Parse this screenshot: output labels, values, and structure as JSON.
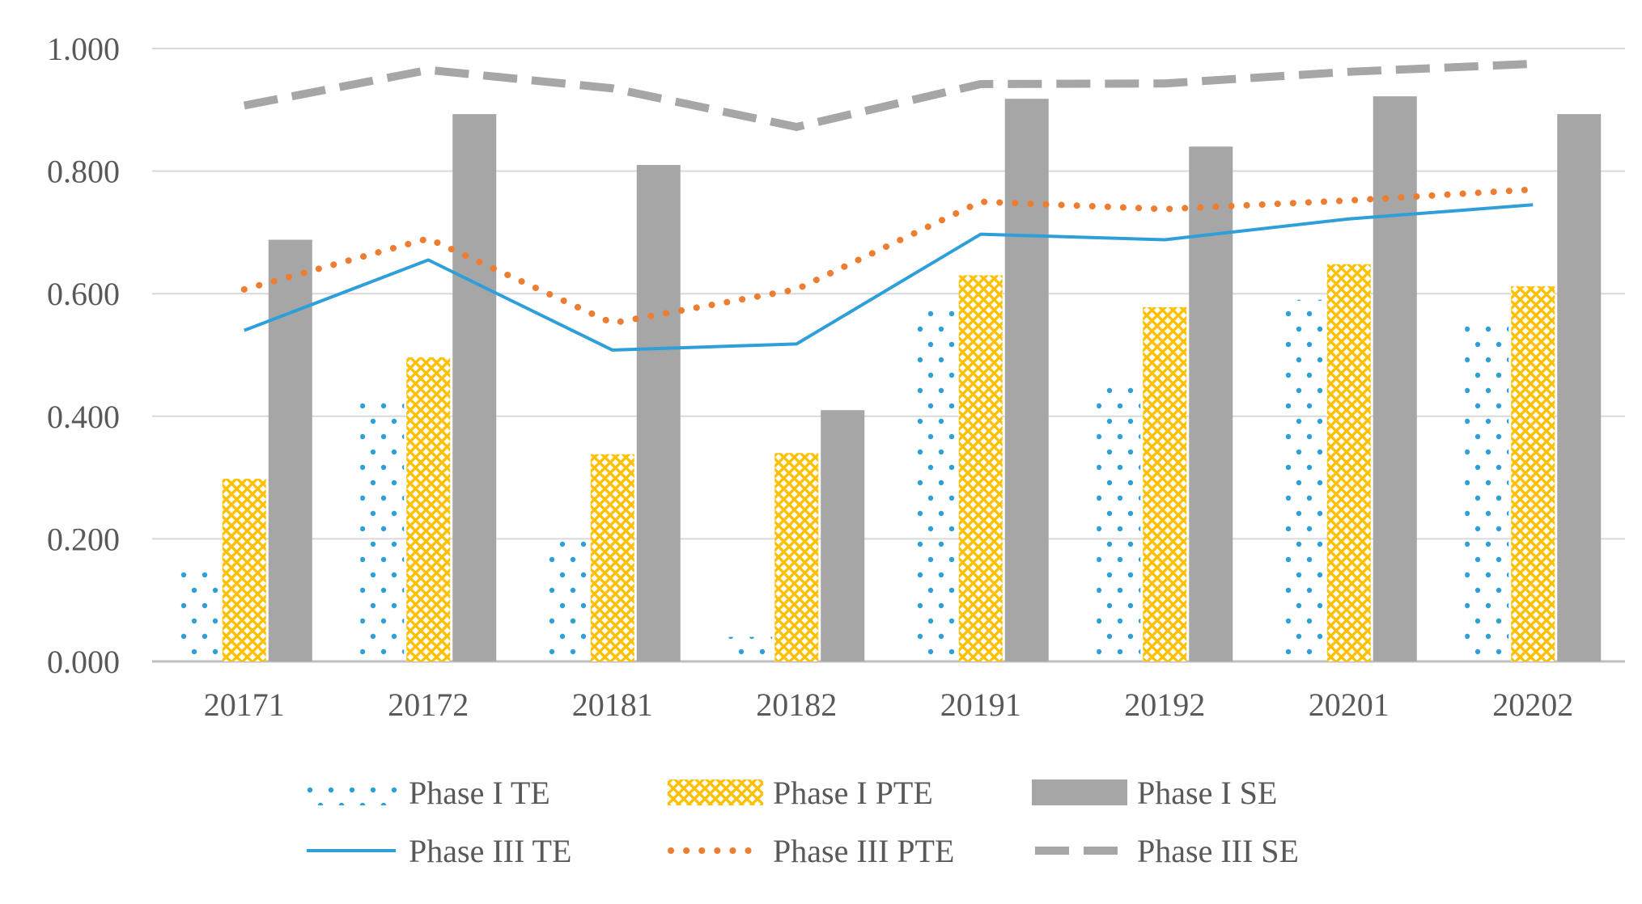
{
  "chart_data": {
    "type": "bar",
    "title": "",
    "xlabel": "",
    "ylabel": "",
    "ylim": [
      0,
      1
    ],
    "y_ticks": [
      "0.000",
      "0.200",
      "0.400",
      "0.600",
      "0.800",
      "1.000"
    ],
    "y_tick_values": [
      0,
      0.2,
      0.4,
      0.6,
      0.8,
      1.0
    ],
    "categories": [
      "20171",
      "20172",
      "20181",
      "20182",
      "20191",
      "20192",
      "20201",
      "20202"
    ],
    "grid": true,
    "legend_position": "bottom",
    "bar_series": [
      {
        "name": "Phase I TE",
        "style": "dotted-bar",
        "color": "#2e9fd8",
        "values": [
          0.146,
          0.43,
          0.202,
          0.04,
          0.575,
          0.455,
          0.59,
          0.55
        ]
      },
      {
        "name": "Phase I PTE",
        "style": "hatched-bar",
        "color": "#ffc000",
        "values": [
          0.298,
          0.496,
          0.338,
          0.34,
          0.63,
          0.578,
          0.648,
          0.612
        ]
      },
      {
        "name": "Phase I SE",
        "style": "solid-bar",
        "color": "#a6a6a6",
        "values": [
          0.688,
          0.893,
          0.81,
          0.41,
          0.918,
          0.84,
          0.922,
          0.893
        ]
      }
    ],
    "line_series": [
      {
        "name": "Phase III TE",
        "style": "solid-line",
        "color": "#2e9fd8",
        "values": [
          0.54,
          0.655,
          0.508,
          0.518,
          0.697,
          0.688,
          0.722,
          0.745
        ]
      },
      {
        "name": "Phase III PTE",
        "style": "dotted-line",
        "color": "#ed7d31",
        "values": [
          0.607,
          0.69,
          0.552,
          0.607,
          0.75,
          0.738,
          0.752,
          0.77
        ]
      },
      {
        "name": "Phase III SE",
        "style": "dashed-line",
        "color": "#a6a6a6",
        "values": [
          0.907,
          0.965,
          0.935,
          0.872,
          0.942,
          0.943,
          0.962,
          0.975
        ]
      }
    ]
  },
  "legend": {
    "row1": [
      "Phase I TE",
      "Phase I PTE",
      "Phase I SE"
    ],
    "row2": [
      "Phase III TE",
      "Phase III PTE",
      "Phase III SE"
    ]
  }
}
